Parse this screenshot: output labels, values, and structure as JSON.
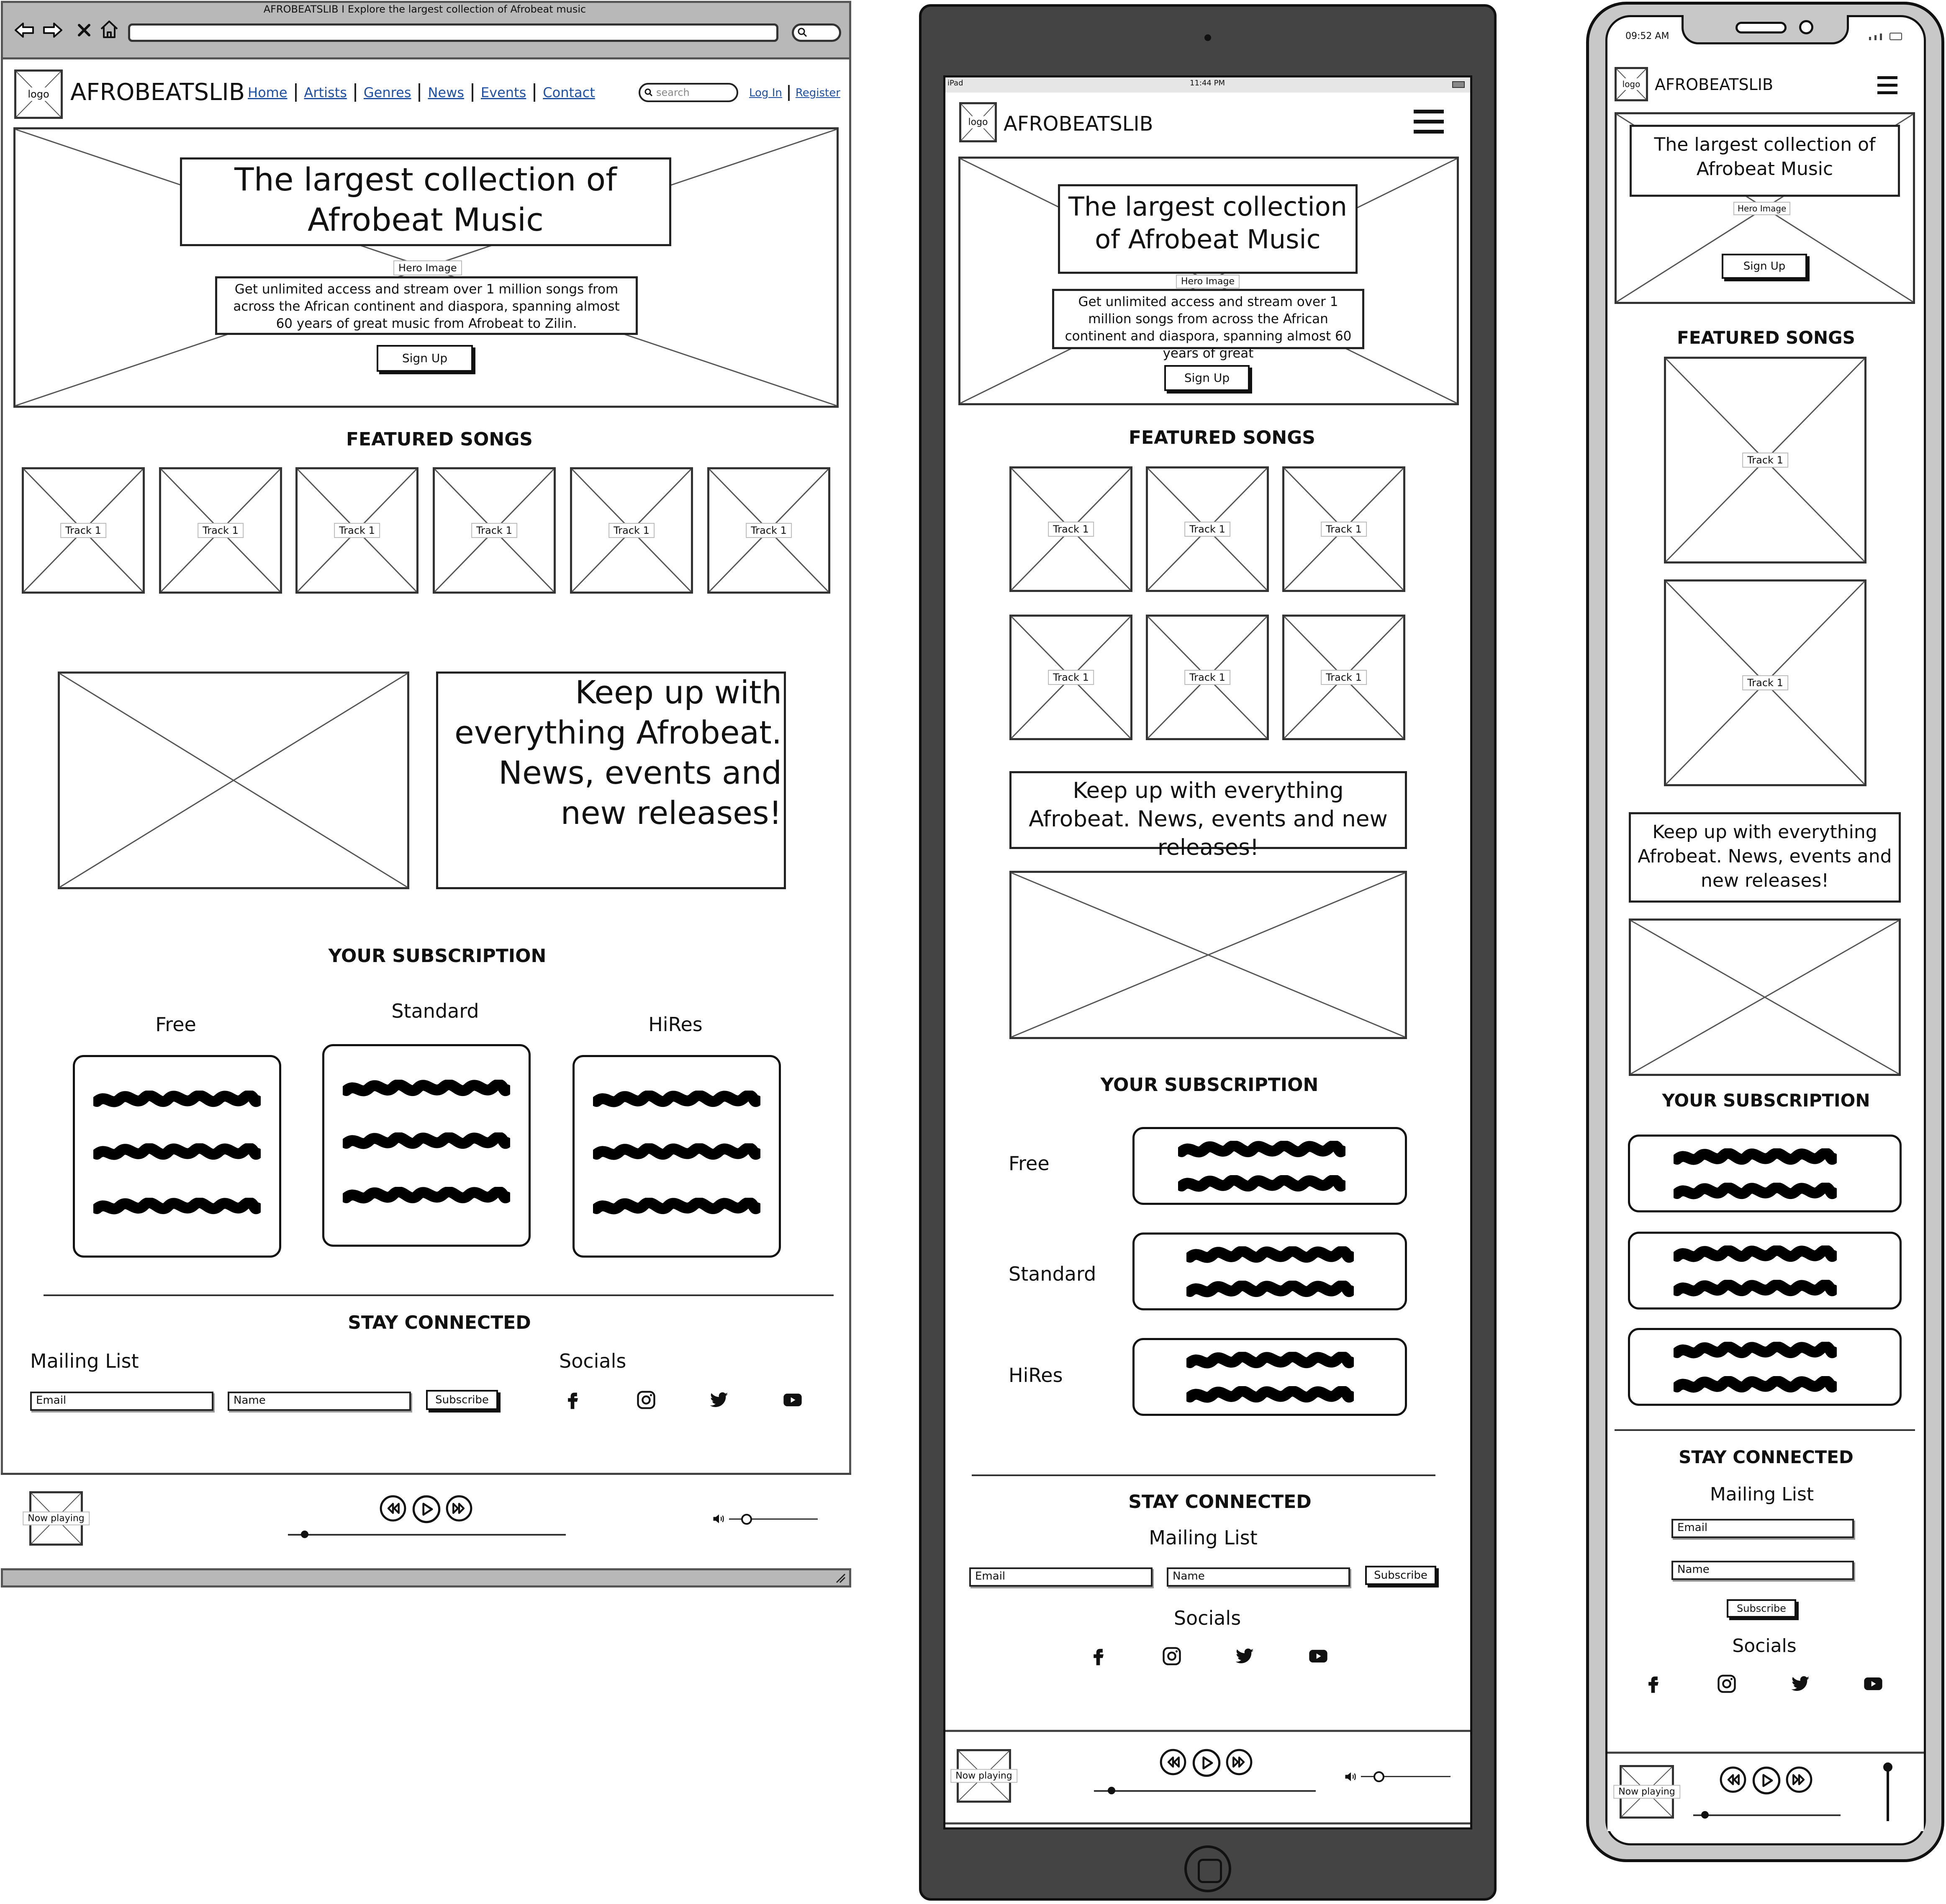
{
  "desktop": {
    "window_title": "AFROBEATSLIB I Explore the largest collection of Afrobeat music",
    "logo_label": "logo",
    "brand": "AFROBEATSLIB",
    "nav": [
      "Home",
      "Artists",
      "Genres",
      "News",
      "Events",
      "Contact"
    ],
    "search_placeholder": "search",
    "login": "Log In",
    "register": "Register",
    "hero": {
      "title": "The largest collection of Afrobeat Music",
      "image_label": "Hero Image",
      "description": "Get unlimited access and stream over 1 million songs from across the African continent and diaspora, spanning almost 60 years of great music from Afrobeat to Zilin.",
      "cta": "Sign Up"
    },
    "featured_title": "FEATURED SONGS",
    "tracks": [
      "Track 1",
      "Track 1",
      "Track 1",
      "Track 1",
      "Track 1",
      "Track 1"
    ],
    "news_text": "Keep up with everything Afrobeat. News, events and new releases!",
    "subscription_title": "YOUR SUBSCRIPTION",
    "plans": [
      "Free",
      "Standard",
      "HiRes"
    ],
    "stay_connected": "STAY CONNECTED",
    "mailing_list": "Mailing List",
    "email_placeholder": "Email",
    "name_placeholder": "Name",
    "subscribe": "Subscribe",
    "socials": "Socials",
    "player": {
      "now_playing": "Now playing",
      "progress": 0.06,
      "volume": 0.2
    }
  },
  "tablet": {
    "status_left": "iPad",
    "status_time": "11:44 PM",
    "logo_label": "logo",
    "brand": "AFROBEATSLIB",
    "hero": {
      "title": "The largest collection of Afrobeat Music",
      "image_label": "Hero Image",
      "description": "Get unlimited access and stream over 1 million songs from across the African continent and diaspora, spanning almost 60 years of great",
      "cta": "Sign Up"
    },
    "featured_title": "FEATURED SONGS",
    "tracks": [
      "Track 1",
      "Track 1",
      "Track 1",
      "Track 1",
      "Track 1",
      "Track 1"
    ],
    "news_text": "Keep up with everything Afrobeat. News, events and new releases!",
    "subscription_title": "YOUR SUBSCRIPTION",
    "plans": [
      "Free",
      "Standard",
      "HiRes"
    ],
    "stay_connected": "STAY CONNECTED",
    "mailing_list": "Mailing List",
    "email_placeholder": "Email",
    "name_placeholder": "Name",
    "subscribe": "Subscribe",
    "socials": "Socials",
    "player": {
      "now_playing": "Now playing",
      "progress": 0.08,
      "volume": 0.2
    }
  },
  "mobile": {
    "status_time": "09:52 AM",
    "logo_label": "logo",
    "brand": "AFROBEATSLIB",
    "hero": {
      "title": "The largest collection of Afrobeat Music",
      "image_label": "Hero Image",
      "cta": "Sign Up"
    },
    "featured_title": "FEATURED SONGS",
    "tracks": [
      "Track 1",
      "Track 1"
    ],
    "news_text": "Keep up with everything Afrobeat. News, events and new releases!",
    "subscription_title": "YOUR SUBSCRIPTION",
    "stay_connected": "STAY CONNECTED",
    "mailing_list": "Mailing List",
    "email_placeholder": "Email",
    "name_placeholder": "Name",
    "subscribe": "Subscribe",
    "socials": "Socials",
    "player": {
      "now_playing": "Now playing",
      "progress": 0.08
    }
  },
  "icons": {
    "back": "arrow-left-icon",
    "forward": "arrow-right-icon",
    "close": "close-icon",
    "home": "home-icon",
    "search": "search-icon",
    "menu": "hamburger-menu-icon",
    "facebook": "facebook-icon",
    "instagram": "instagram-icon",
    "twitter": "twitter-icon",
    "youtube": "youtube-icon",
    "rewind": "rewind-icon",
    "play": "play-icon",
    "forward_skip": "fast-forward-icon",
    "volume": "volume-icon"
  }
}
